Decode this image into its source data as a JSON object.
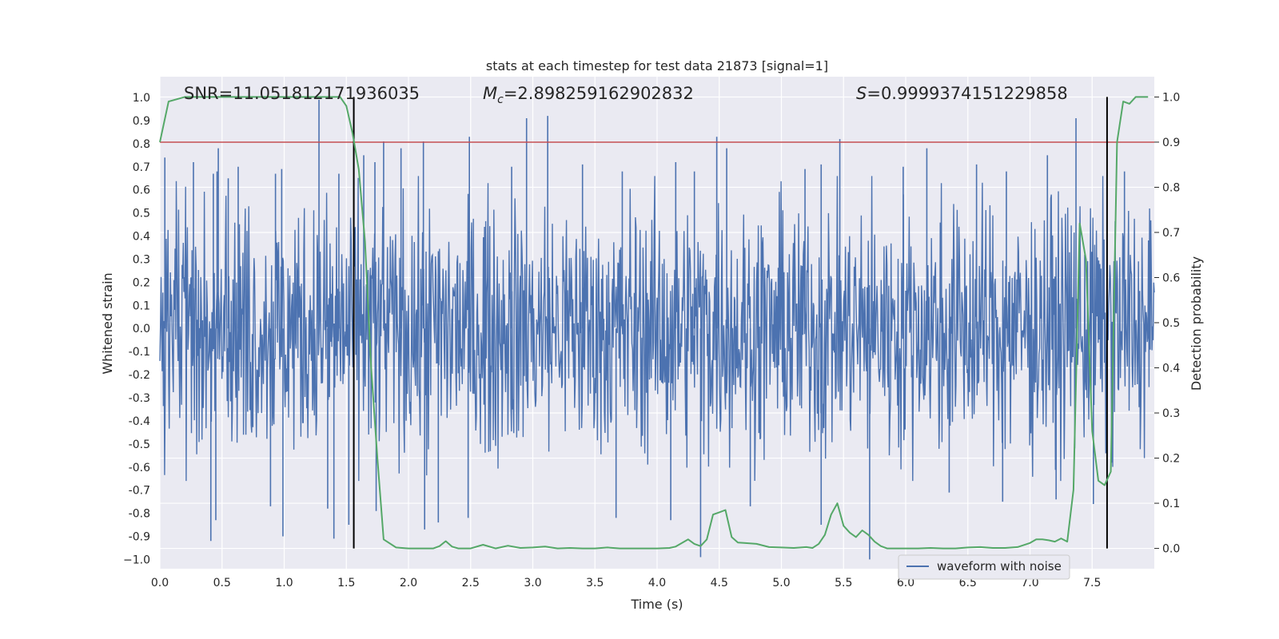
{
  "chart_data": {
    "type": "line",
    "title": "stats at each timestep for test data 21873 [signal=1]",
    "xlabel": "Time (s)",
    "ylabel": "Whitened strain",
    "y2label": "Detection probability",
    "xlim": [
      0.0,
      8.0
    ],
    "ylim": [
      -1.04,
      1.09
    ],
    "y2lim": [
      -0.045,
      1.045
    ],
    "xticks": [
      "0.0",
      "0.5",
      "1.0",
      "1.5",
      "2.0",
      "2.5",
      "3.0",
      "3.5",
      "4.0",
      "4.5",
      "5.0",
      "5.5",
      "6.0",
      "6.5",
      "7.0",
      "7.5"
    ],
    "yticks": [
      "1.0",
      "0.9",
      "0.8",
      "0.7",
      "0.6",
      "0.5",
      "0.4",
      "0.3",
      "0.2",
      "0.1",
      "0.0",
      "-0.1",
      "-0.2",
      "-0.3",
      "-0.4",
      "-0.5",
      "-0.6",
      "-0.7",
      "-0.8",
      "-0.9",
      "−1.0"
    ],
    "y2ticks": [
      "1.0",
      "0.9",
      "0.8",
      "0.7",
      "0.6",
      "0.5",
      "0.4",
      "0.3",
      "0.2",
      "0.1",
      "0.0"
    ],
    "threshold": {
      "y": 0.9,
      "axis": "right",
      "color": "#c44e52"
    },
    "vertical_markers": [
      1.56,
      7.62
    ],
    "annotations": {
      "snr": "SNR=11.051812171936035",
      "mc_symbol": "M",
      "mc_sub": "c",
      "mc_value": "=2.898259162902832",
      "s_symbol": "S",
      "s_value": "=0.9999374151229858"
    },
    "legend": {
      "label": "waveform with noise",
      "position": "lower-right"
    },
    "series": [
      {
        "name": "waveform with noise",
        "axis": "left",
        "color": "#4c72b0",
        "kind": "noise",
        "spikes_high": [
          [
            0.04,
            0.74
          ],
          [
            0.27,
            0.72
          ],
          [
            0.43,
            0.67
          ],
          [
            0.46,
            0.68
          ],
          [
            0.47,
            0.78
          ],
          [
            0.55,
            0.65
          ],
          [
            0.63,
            0.7
          ],
          [
            0.93,
            0.67
          ],
          [
            0.98,
            0.69
          ],
          [
            1.28,
            0.99
          ],
          [
            1.44,
            0.67
          ],
          [
            1.64,
            0.75
          ],
          [
            1.73,
            0.72
          ],
          [
            1.8,
            0.81
          ],
          [
            1.94,
            0.78
          ],
          [
            2.12,
            0.81
          ],
          [
            2.49,
            0.83
          ],
          [
            2.83,
            0.7
          ],
          [
            2.95,
            0.91
          ],
          [
            3.12,
            0.92
          ],
          [
            3.4,
            0.71
          ],
          [
            3.72,
            0.68
          ],
          [
            4.15,
            0.72
          ],
          [
            4.3,
            0.68
          ],
          [
            4.48,
            0.83
          ],
          [
            4.56,
            0.78
          ],
          [
            5.19,
            0.69
          ],
          [
            5.32,
            0.71
          ],
          [
            5.47,
            0.82
          ],
          [
            5.98,
            0.7
          ],
          [
            6.17,
            0.78
          ],
          [
            6.57,
            0.71
          ],
          [
            6.81,
            0.68
          ],
          [
            7.14,
            0.75
          ],
          [
            7.37,
            0.91
          ],
          [
            7.76,
            0.68
          ]
        ],
        "spikes_low": [
          [
            0.41,
            -0.92
          ],
          [
            0.45,
            -0.83
          ],
          [
            0.89,
            -0.77
          ],
          [
            0.99,
            -0.9
          ],
          [
            1.35,
            -0.78
          ],
          [
            1.4,
            -0.91
          ],
          [
            1.52,
            -0.85
          ],
          [
            1.74,
            -0.79
          ],
          [
            2.13,
            -0.87
          ],
          [
            2.24,
            -0.84
          ],
          [
            2.48,
            -0.82
          ],
          [
            3.67,
            -0.82
          ],
          [
            4.11,
            -0.83
          ],
          [
            4.35,
            -0.99
          ],
          [
            4.75,
            -0.77
          ],
          [
            5.32,
            -0.85
          ],
          [
            5.71,
            -1.0
          ],
          [
            6.35,
            -0.71
          ],
          [
            6.78,
            -0.75
          ],
          [
            7.21,
            -0.74
          ],
          [
            7.51,
            -0.76
          ]
        ]
      },
      {
        "name": "Detection probability",
        "axis": "right",
        "color": "#55a868",
        "kind": "line",
        "x": [
          0.0,
          0.07,
          0.2,
          0.4,
          0.6,
          0.8,
          1.0,
          1.2,
          1.35,
          1.45,
          1.5,
          1.55,
          1.6,
          1.65,
          1.7,
          1.75,
          1.8,
          1.9,
          2.0,
          2.1,
          2.2,
          2.25,
          2.3,
          2.35,
          2.4,
          2.5,
          2.6,
          2.7,
          2.8,
          2.9,
          3.0,
          3.1,
          3.2,
          3.3,
          3.4,
          3.5,
          3.6,
          3.7,
          3.8,
          3.9,
          4.0,
          4.1,
          4.15,
          4.2,
          4.25,
          4.3,
          4.35,
          4.4,
          4.45,
          4.5,
          4.55,
          4.6,
          4.65,
          4.7,
          4.8,
          4.9,
          5.0,
          5.1,
          5.2,
          5.25,
          5.3,
          5.35,
          5.4,
          5.45,
          5.5,
          5.55,
          5.6,
          5.65,
          5.7,
          5.75,
          5.8,
          5.85,
          5.9,
          6.0,
          6.1,
          6.2,
          6.3,
          6.4,
          6.5,
          6.6,
          6.7,
          6.8,
          6.9,
          7.0,
          7.05,
          7.1,
          7.15,
          7.2,
          7.25,
          7.3,
          7.35,
          7.4,
          7.45,
          7.5,
          7.55,
          7.6,
          7.65,
          7.7,
          7.75,
          7.8,
          7.85,
          7.95
        ],
        "y": [
          0.9,
          0.99,
          1.0,
          1.0,
          1.0,
          1.0,
          1.0,
          1.0,
          1.0,
          1.0,
          0.98,
          0.92,
          0.84,
          0.68,
          0.4,
          0.2,
          0.02,
          0.002,
          0.0,
          0.0,
          0.0,
          0.005,
          0.016,
          0.004,
          0.0,
          0.0,
          0.008,
          0.0,
          0.006,
          0.001,
          0.002,
          0.004,
          0.0,
          0.001,
          0.0,
          0.0,
          0.002,
          0.0,
          0.0,
          0.0,
          0.0,
          0.001,
          0.004,
          0.012,
          0.02,
          0.01,
          0.005,
          0.02,
          0.075,
          0.08,
          0.085,
          0.025,
          0.013,
          0.012,
          0.01,
          0.003,
          0.002,
          0.001,
          0.003,
          0.001,
          0.01,
          0.03,
          0.075,
          0.1,
          0.05,
          0.035,
          0.025,
          0.04,
          0.03,
          0.015,
          0.005,
          0.0,
          0.0,
          0.0,
          0.0,
          0.001,
          0.0,
          0.0,
          0.002,
          0.003,
          0.001,
          0.001,
          0.003,
          0.012,
          0.02,
          0.02,
          0.018,
          0.015,
          0.022,
          0.015,
          0.13,
          0.72,
          0.64,
          0.26,
          0.15,
          0.14,
          0.17,
          0.9,
          0.99,
          0.985,
          1.0,
          1.0
        ]
      }
    ]
  }
}
